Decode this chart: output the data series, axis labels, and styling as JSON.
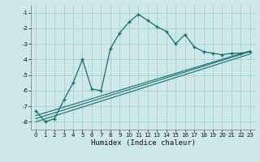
{
  "xlabel": "Humidex (Indice chaleur)",
  "bg_color": "#cce8e8",
  "grid_color": "#aacece",
  "line_color": "#1a6e6e",
  "xlim": [
    -0.5,
    23.5
  ],
  "ylim": [
    -8.5,
    -0.5
  ],
  "xticks": [
    0,
    1,
    2,
    3,
    4,
    5,
    6,
    7,
    8,
    9,
    10,
    11,
    12,
    13,
    14,
    15,
    16,
    17,
    18,
    19,
    20,
    21,
    22,
    23
  ],
  "yticks": [
    -8,
    -7,
    -6,
    -5,
    -4,
    -3,
    -2,
    -1
  ],
  "main_x": [
    0,
    1,
    2,
    3,
    4,
    5,
    6,
    7,
    8,
    9,
    10,
    11,
    12,
    13,
    14,
    15,
    16,
    17,
    18,
    19,
    20,
    21,
    22,
    23
  ],
  "main_y": [
    -7.3,
    -8.0,
    -7.8,
    -6.6,
    -5.5,
    -4.0,
    -5.9,
    -6.0,
    -3.3,
    -2.3,
    -1.6,
    -1.1,
    -1.5,
    -1.9,
    -2.2,
    -3.0,
    -2.4,
    -3.2,
    -3.5,
    -3.6,
    -3.7,
    -3.6,
    -3.6,
    -3.5
  ],
  "line1_x": [
    0,
    23
  ],
  "line1_y": [
    -7.8,
    -3.5
  ],
  "line2_x": [
    0,
    23
  ],
  "line2_y": [
    -8.0,
    -3.65
  ],
  "line3_x": [
    0,
    23
  ],
  "line3_y": [
    -7.6,
    -3.45
  ]
}
